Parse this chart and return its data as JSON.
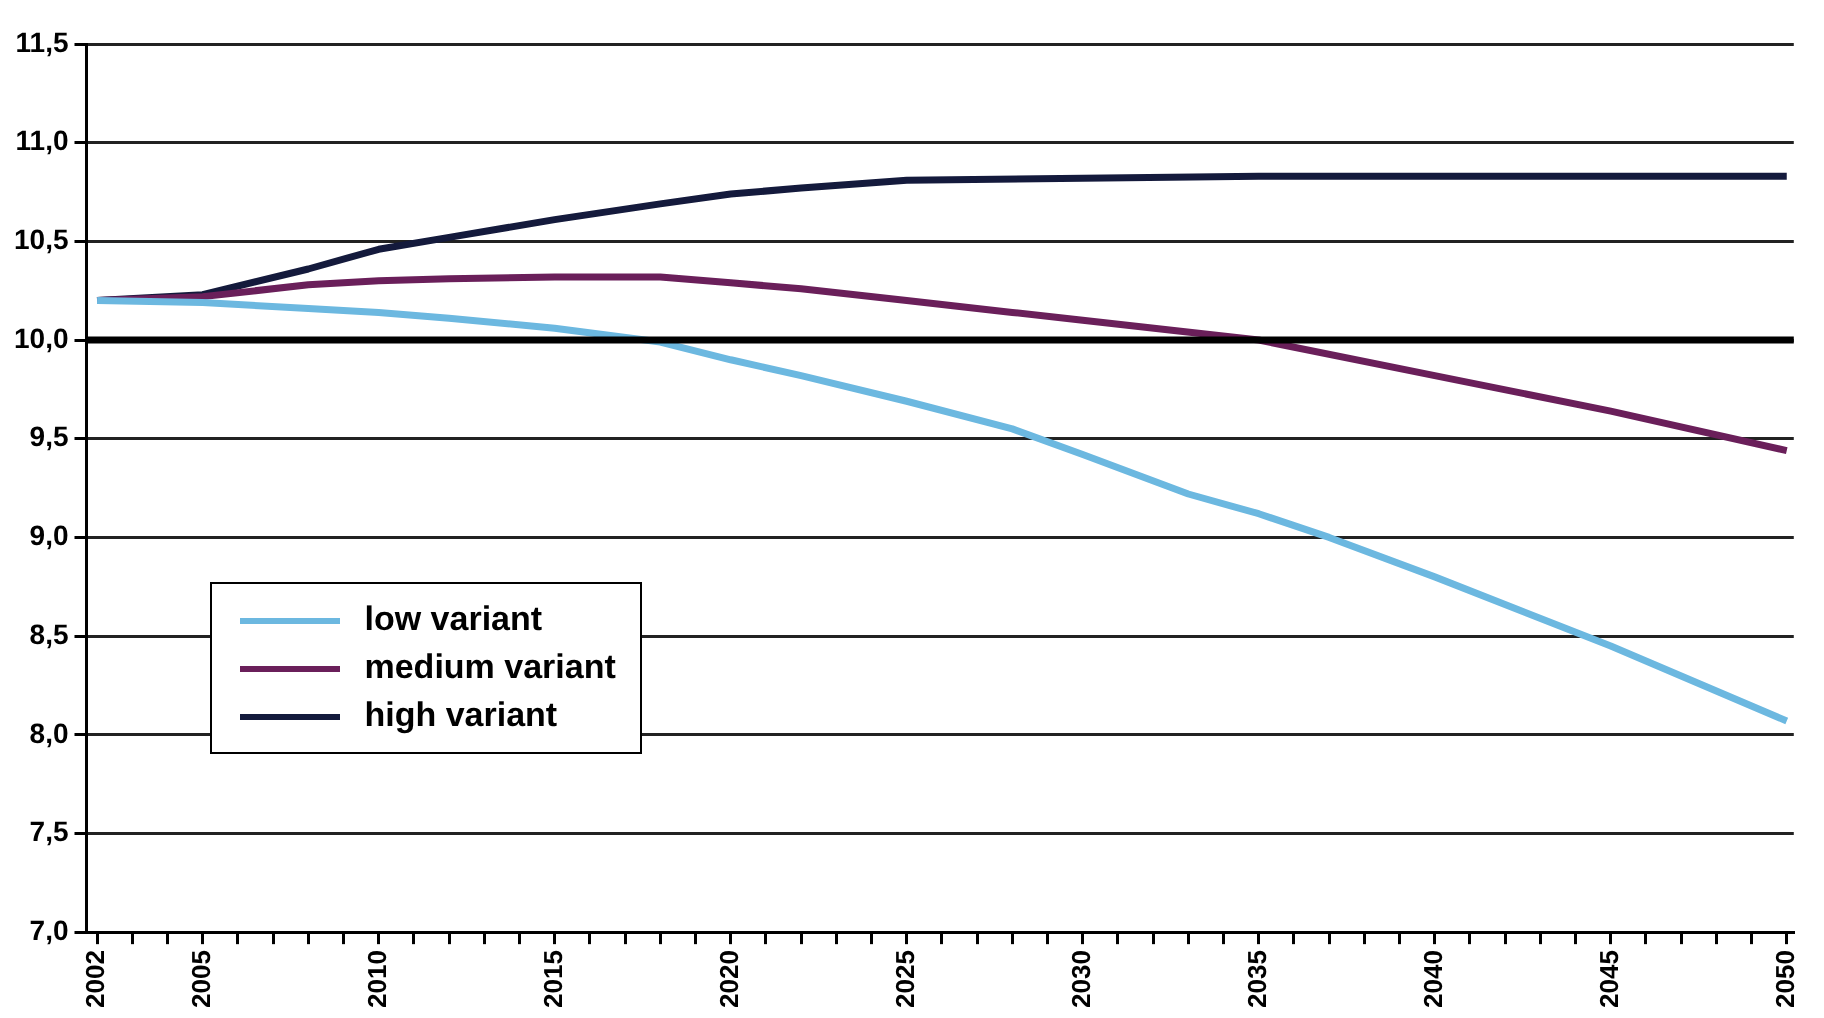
{
  "chart_data": {
    "type": "line",
    "xlim": [
      2001.7,
      2050.2
    ],
    "ylim": [
      7.0,
      11.5
    ],
    "yticks": [
      {
        "value": 7.0,
        "label": "7,0"
      },
      {
        "value": 7.5,
        "label": "7,5"
      },
      {
        "value": 8.0,
        "label": "8,0"
      },
      {
        "value": 8.5,
        "label": "8,5"
      },
      {
        "value": 9.0,
        "label": "9,0"
      },
      {
        "value": 9.5,
        "label": "9,5"
      },
      {
        "value": 10.0,
        "label": "10,0"
      },
      {
        "value": 10.5,
        "label": "10,5"
      },
      {
        "value": 11.0,
        "label": "11,0"
      },
      {
        "value": 11.5,
        "label": "11,5"
      }
    ],
    "xticks": [
      2002,
      {
        "value": 2003,
        "label": null
      },
      {
        "value": 2004,
        "label": null
      },
      2005,
      {
        "value": 2006,
        "label": null
      },
      {
        "value": 2007,
        "label": null
      },
      {
        "value": 2008,
        "label": null
      },
      {
        "value": 2009,
        "label": null
      },
      2010,
      {
        "value": 2011,
        "label": null
      },
      {
        "value": 2012,
        "label": null
      },
      {
        "value": 2013,
        "label": null
      },
      {
        "value": 2014,
        "label": null
      },
      2015,
      {
        "value": 2016,
        "label": null
      },
      {
        "value": 2017,
        "label": null
      },
      {
        "value": 2018,
        "label": null
      },
      {
        "value": 2019,
        "label": null
      },
      2020,
      {
        "value": 2021,
        "label": null
      },
      {
        "value": 2022,
        "label": null
      },
      {
        "value": 2023,
        "label": null
      },
      {
        "value": 2024,
        "label": null
      },
      2025,
      {
        "value": 2026,
        "label": null
      },
      {
        "value": 2027,
        "label": null
      },
      {
        "value": 2028,
        "label": null
      },
      {
        "value": 2029,
        "label": null
      },
      2030,
      {
        "value": 2031,
        "label": null
      },
      {
        "value": 2032,
        "label": null
      },
      {
        "value": 2033,
        "label": null
      },
      {
        "value": 2034,
        "label": null
      },
      2035,
      {
        "value": 2036,
        "label": null
      },
      {
        "value": 2037,
        "label": null
      },
      {
        "value": 2038,
        "label": null
      },
      {
        "value": 2039,
        "label": null
      },
      2040,
      {
        "value": 2041,
        "label": null
      },
      {
        "value": 2042,
        "label": null
      },
      {
        "value": 2043,
        "label": null
      },
      {
        "value": 2044,
        "label": null
      },
      2045,
      {
        "value": 2046,
        "label": null
      },
      {
        "value": 2047,
        "label": null
      },
      {
        "value": 2048,
        "label": null
      },
      {
        "value": 2049,
        "label": null
      },
      2050
    ],
    "grid": "y",
    "legend": "bottom left",
    "marker": "none",
    "line_style": "solid",
    "ref_lines": [
      {
        "axis": "y",
        "value": 10.0,
        "color": "#000000"
      }
    ],
    "series": [
      {
        "name": "low variant",
        "color": "#6cb8e0",
        "x": [
          2002,
          2005,
          2008,
          2010,
          2012,
          2015,
          2018,
          2020,
          2022,
          2025,
          2028,
          2030,
          2033,
          2035,
          2037,
          2040,
          2045,
          2050
        ],
        "values": [
          10.2,
          10.19,
          10.16,
          10.14,
          10.11,
          10.06,
          9.99,
          9.9,
          9.82,
          9.69,
          9.55,
          9.42,
          9.22,
          9.12,
          9.0,
          8.8,
          8.45,
          8.07
        ]
      },
      {
        "name": "medium variant",
        "color": "#6a1f5a",
        "x": [
          2002,
          2005,
          2008,
          2010,
          2012,
          2015,
          2018,
          2020,
          2022,
          2025,
          2028,
          2030,
          2035,
          2040,
          2045,
          2050
        ],
        "values": [
          10.2,
          10.22,
          10.28,
          10.3,
          10.31,
          10.32,
          10.32,
          10.29,
          10.26,
          10.2,
          10.14,
          10.1,
          10.0,
          9.82,
          9.64,
          9.44
        ]
      },
      {
        "name": "high variant",
        "color": "#141a3c",
        "x": [
          2002,
          2005,
          2008,
          2010,
          2012,
          2015,
          2018,
          2020,
          2022,
          2025,
          2030,
          2035,
          2040,
          2045,
          2050
        ],
        "values": [
          10.2,
          10.23,
          10.36,
          10.46,
          10.52,
          10.61,
          10.69,
          10.74,
          10.77,
          10.81,
          10.82,
          10.83,
          10.83,
          10.83,
          10.83
        ]
      }
    ]
  }
}
